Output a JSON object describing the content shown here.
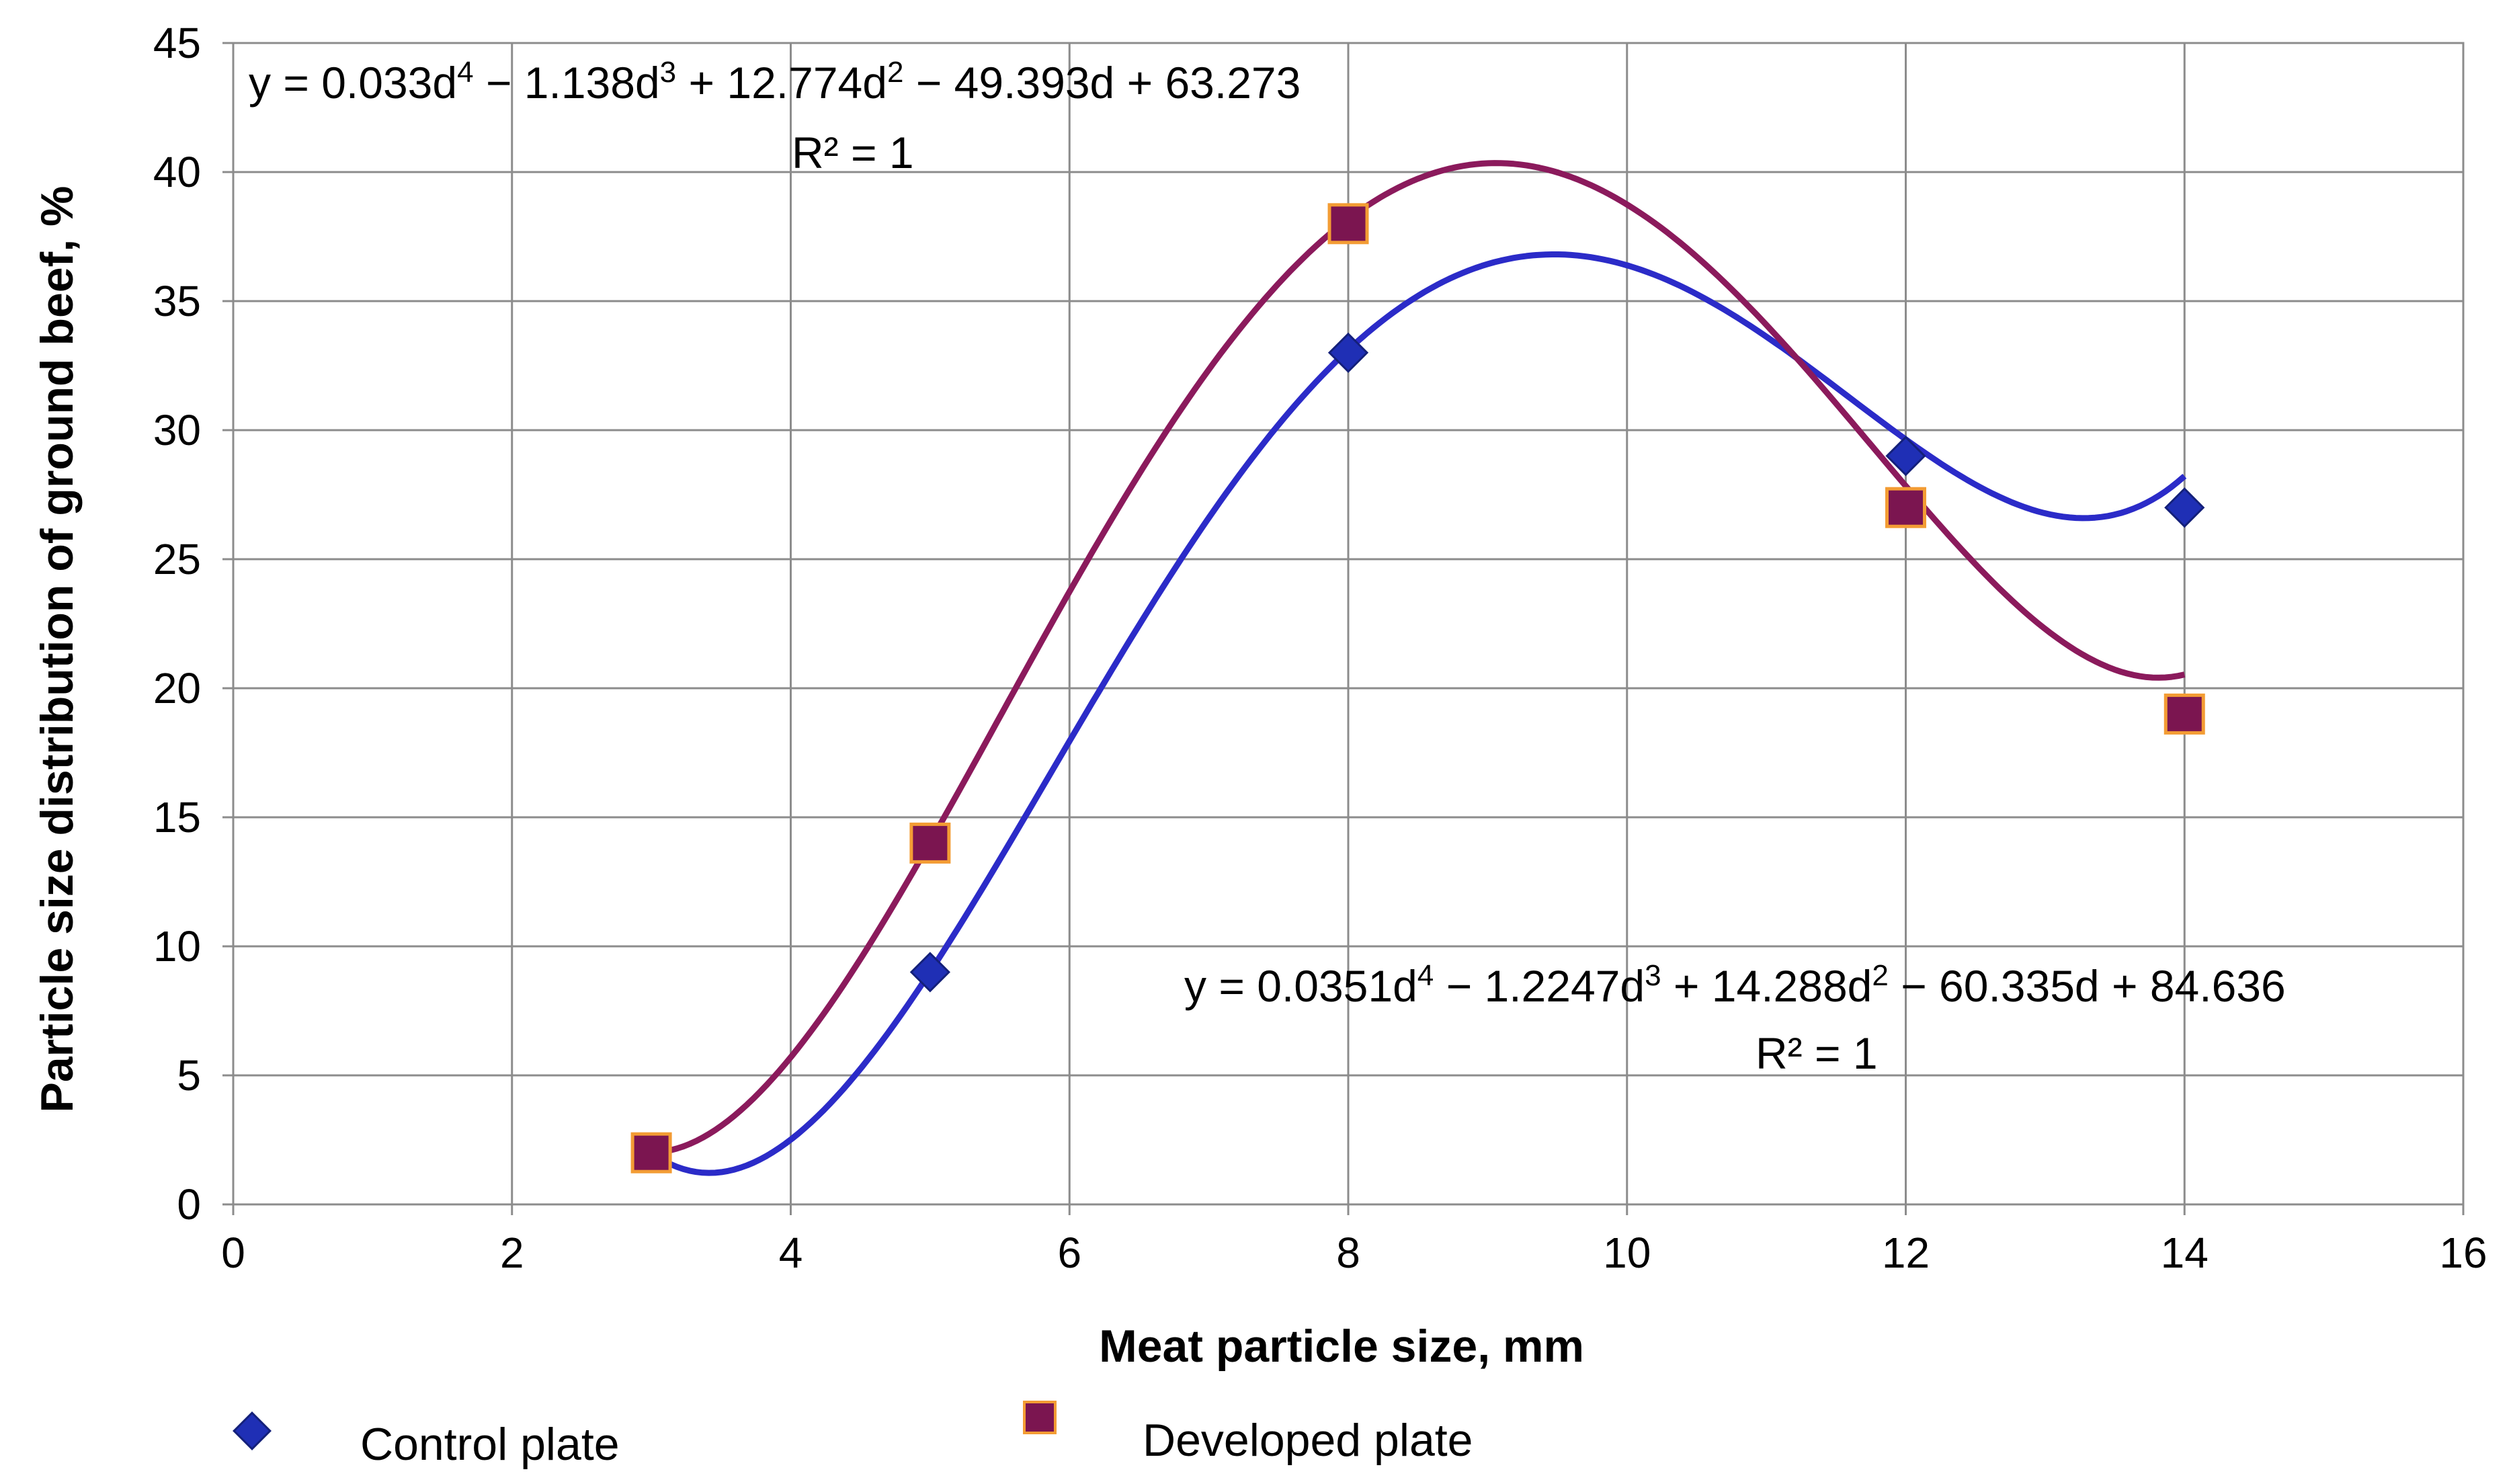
{
  "chart_data": {
    "type": "scatter",
    "xlabel": "Meat particle size, mm",
    "ylabel": "Particle size distribution of ground beef, %",
    "xlim": [
      0,
      16
    ],
    "ylim": [
      0,
      45
    ],
    "xticks": [
      0,
      2,
      4,
      6,
      8,
      10,
      12,
      14,
      16
    ],
    "yticks": [
      0,
      5,
      10,
      15,
      20,
      25,
      30,
      35,
      40,
      45
    ],
    "grid": true,
    "legend_position": "bottom",
    "series": [
      {
        "name": "Control plate",
        "marker": "diamond",
        "color": "#1f2fb5",
        "curve_color": "#2b2bc8",
        "x": [
          3,
          5,
          8,
          12,
          14
        ],
        "y": [
          2,
          9,
          33,
          29,
          27
        ],
        "trendline": {
          "type": "polynomial",
          "order": 4,
          "coefficients": [
            0.0351,
            -1.2247,
            14.288,
            -60.335,
            84.636
          ],
          "equation": {
            "prefix": "y = 0.0351d",
            "p1": "4",
            "m1": " − 1.2247d",
            "p2": "3",
            "m2": " + 14.288d",
            "p3": "2",
            "m3": " − 60.335d + 84.636"
          },
          "r2_label": "R² = 1"
        }
      },
      {
        "name": "Developed plate",
        "marker": "square",
        "color": "#7b1550",
        "edge_color": "#f39c34",
        "curve_color": "#8b1a5c",
        "x": [
          3,
          5,
          8,
          12,
          14
        ],
        "y": [
          2,
          14,
          38,
          27,
          19
        ],
        "trendline": {
          "type": "polynomial",
          "order": 4,
          "coefficients": [
            0.033,
            -1.138,
            12.774,
            -49.393,
            63.273
          ],
          "equation": {
            "prefix": "y = 0.033d",
            "p1": "4",
            "m1": " − 1.138d",
            "p2": "3",
            "m2": " + 12.774d",
            "p3": "2",
            "m3": " − 49.393d + 63.273"
          },
          "r2_label": "R² = 1"
        }
      }
    ]
  }
}
